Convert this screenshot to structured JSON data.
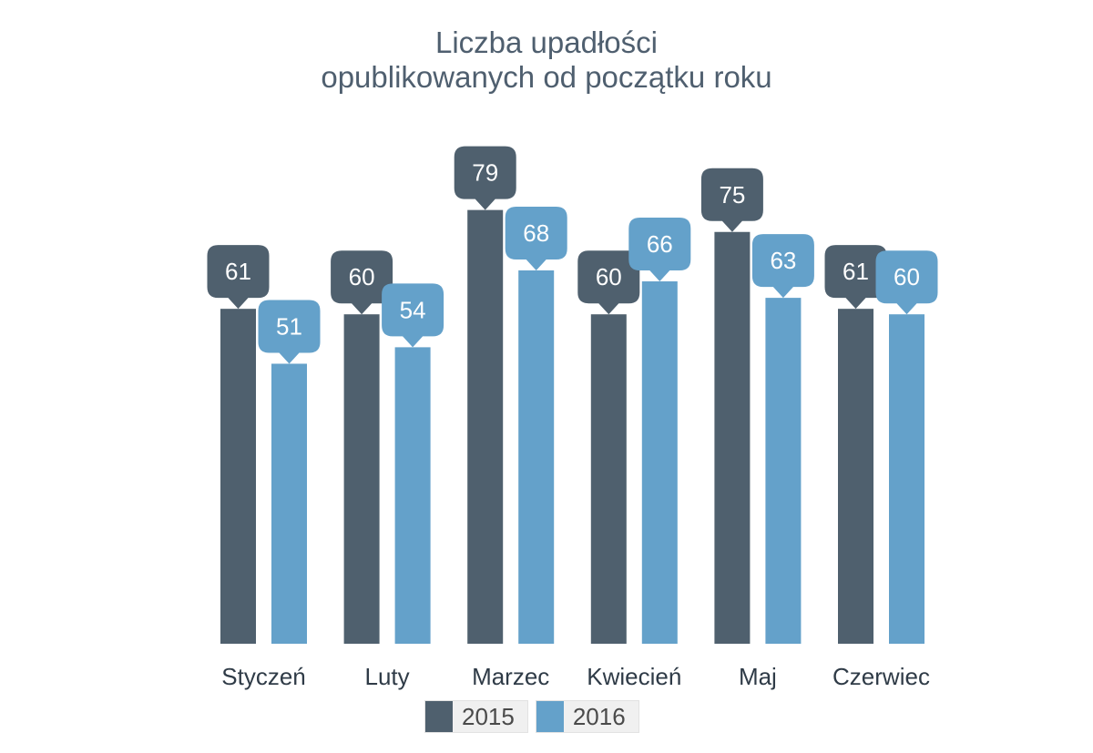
{
  "chart_data": {
    "type": "bar",
    "title": [
      "Liczba upadłości",
      "opublikowanych od początku roku"
    ],
    "categories": [
      "Styczeń",
      "Luty",
      "Marzec",
      "Kwiecień",
      "Maj",
      "Czerwiec"
    ],
    "series": [
      {
        "name": "2015",
        "color": "#4f606e",
        "values": [
          61,
          60,
          79,
          60,
          75,
          61
        ]
      },
      {
        "name": "2016",
        "color": "#64a1ca",
        "values": [
          51,
          54,
          68,
          66,
          63,
          60
        ]
      }
    ],
    "ylim": [
      0,
      100
    ],
    "grid": false,
    "data_labels": true,
    "legend_position": "bottom"
  }
}
